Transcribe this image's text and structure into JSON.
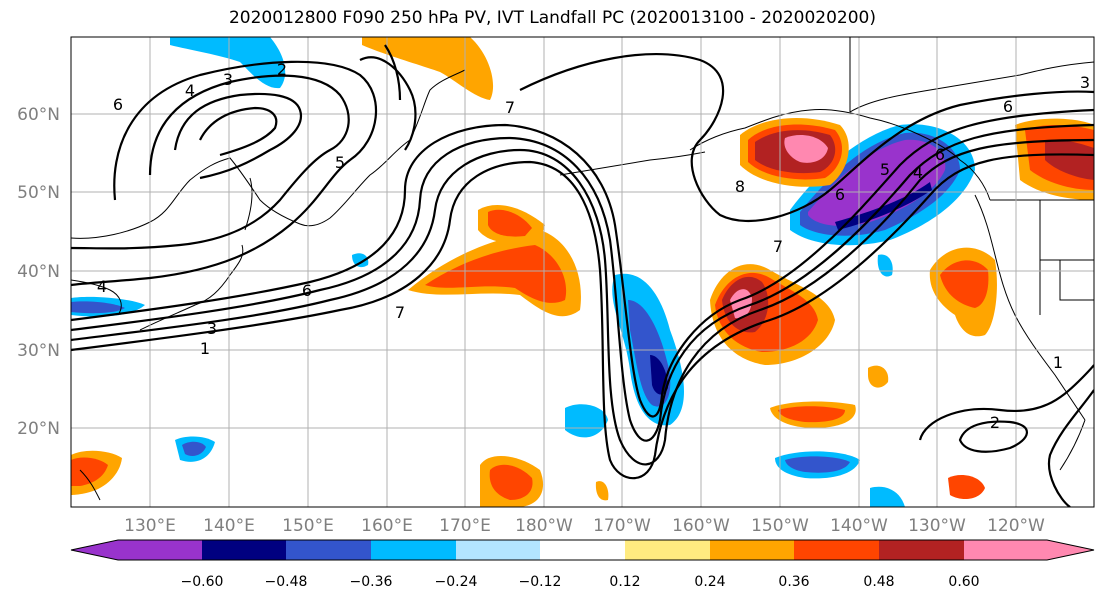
{
  "title": "2020012800 F090 250 hPa PV, IVT Landfall PC (2020013100 - 2020020200)",
  "lat_labels": [
    "60°N",
    "50°N",
    "40°N",
    "30°N",
    "20°N"
  ],
  "lon_labels": [
    "130°E",
    "140°E",
    "150°E",
    "160°E",
    "170°E",
    "180°W",
    "170°W",
    "160°W",
    "150°W",
    "140°W",
    "130°W",
    "120°W"
  ],
  "colorbar": {
    "colors": [
      "#9933cc",
      "#000080",
      "#3355cc",
      "#00bbff",
      "#b3e5ff",
      "#ffffff",
      "#ffeb80",
      "#ffa500",
      "#ff4500",
      "#b22222",
      "#ff88b0"
    ],
    "ticks": [
      "−0.60",
      "−0.48",
      "−0.36",
      "−0.24",
      "−0.12",
      "0.12",
      "0.24",
      "0.36",
      "0.48",
      "0.60"
    ]
  },
  "contour_labels": [
    "6",
    "4",
    "3",
    "2",
    "5",
    "7",
    "6",
    "7",
    "1",
    "3",
    "4",
    "6",
    "8",
    "6",
    "5",
    "4",
    "7",
    "6",
    "2",
    "3",
    "1"
  ]
}
